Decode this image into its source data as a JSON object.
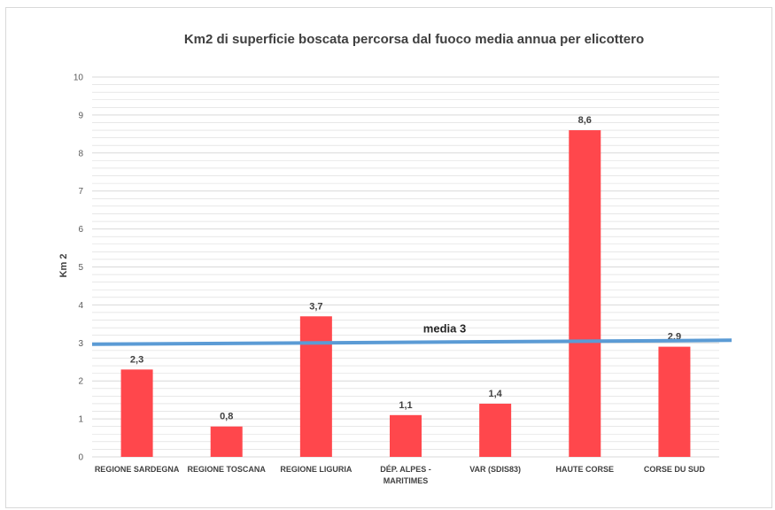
{
  "chart_data": {
    "type": "bar",
    "title": "Km2 di superficie boscata percorsa dal fuoco media annua per elicottero",
    "xlabel": "",
    "ylabel": "Km 2",
    "ylim": [
      0,
      10
    ],
    "yticks": [
      "0",
      "1",
      "2",
      "3",
      "4",
      "5",
      "6",
      "7",
      "8",
      "9",
      "10"
    ],
    "categories": [
      [
        "REGIONE SARDEGNA"
      ],
      [
        "REGIONE TOSCANA"
      ],
      [
        "REGIONE LIGURIA"
      ],
      [
        "DÉP. ALPES -",
        "MARITIMES"
      ],
      [
        "VAR (SDIS83)"
      ],
      [
        "HAUTE CORSE"
      ],
      [
        "CORSE DU SUD"
      ]
    ],
    "values": [
      2.3,
      0.8,
      3.7,
      1.1,
      1.4,
      8.6,
      2.9
    ],
    "data_labels": [
      "2,3",
      "0,8",
      "3,7",
      "1,1",
      "1,4",
      "8,6",
      "2,9"
    ],
    "average": {
      "label": "media 3",
      "value": 3
    },
    "grid": true,
    "colors": {
      "bar": "#ff474c",
      "average_line": "#5b9bd5",
      "grid": "#d9d9d9"
    }
  }
}
